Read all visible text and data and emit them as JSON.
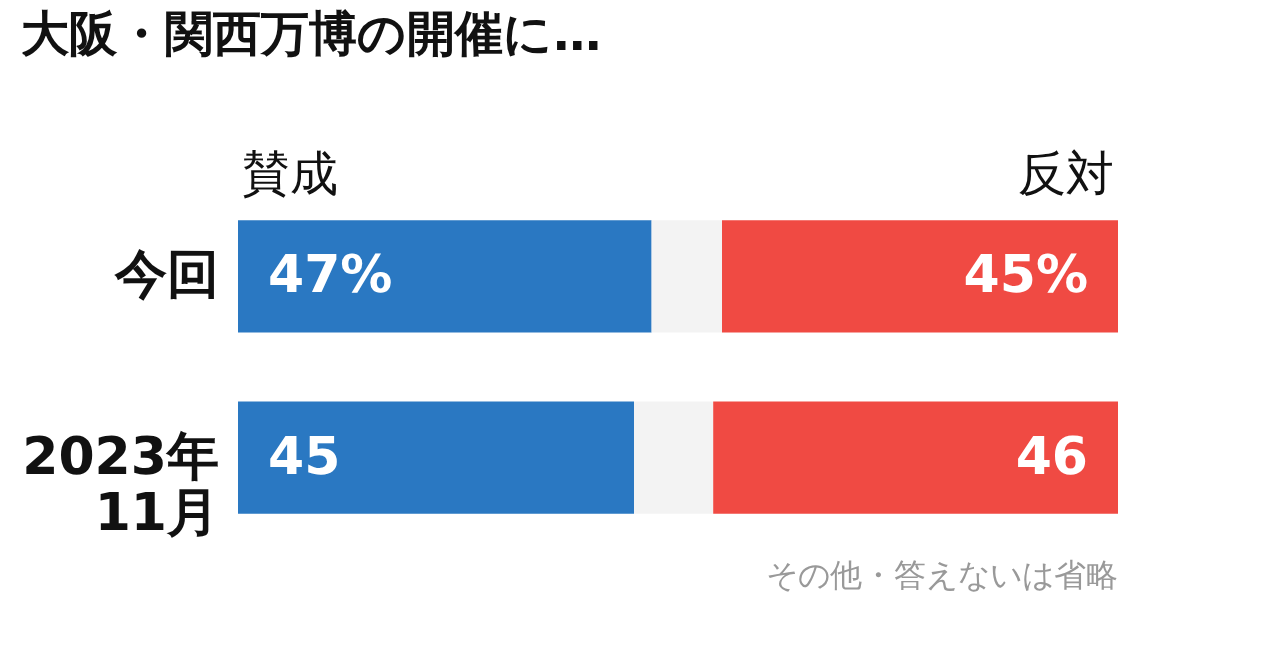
{
  "chart_data": {
    "type": "bar",
    "orientation": "horizontal",
    "stacked": true,
    "title": "大阪・関西万博の開催に…",
    "categories": [
      "今回",
      "2023年\n11月"
    ],
    "series": [
      {
        "name": "賛成",
        "color": "#2a78c2",
        "values": [
          47,
          45
        ],
        "value_labels": [
          "47%",
          "45"
        ]
      },
      {
        "color": "#f3f3f3",
        "values": [
          8,
          9
        ]
      },
      {
        "name": "反対",
        "color": "#f04a43",
        "values": [
          45,
          46
        ],
        "value_labels": [
          "45%",
          "46"
        ]
      }
    ],
    "annotations": [
      "その他・答えないは省略"
    ]
  }
}
